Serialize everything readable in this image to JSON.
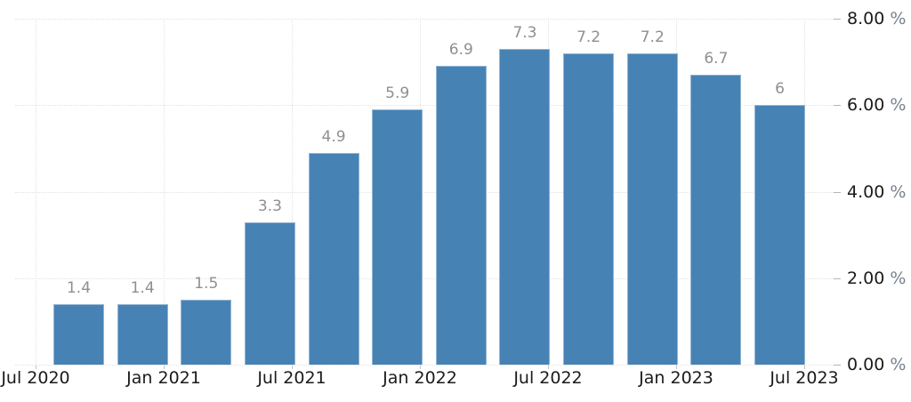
{
  "page": {
    "background_color": "#ffffff"
  },
  "chart_data": {
    "type": "bar",
    "title": "",
    "values": [
      1.4,
      1.4,
      1.5,
      3.3,
      4.9,
      5.9,
      6.9,
      7.3,
      7.2,
      7.2,
      6.7,
      6
    ],
    "bar_value_labels": [
      "1.4",
      "1.4",
      "1.5",
      "3.3",
      "4.9",
      "5.9",
      "6.9",
      "7.3",
      "7.2",
      "7.2",
      "6.7",
      "6"
    ],
    "x_tick_labels": [
      "Jul 2020",
      "Jan 2021",
      "Jul 2021",
      "Jan 2022",
      "Jul 2022",
      "Jan 2023",
      "Jul 2023"
    ],
    "bars_per_x_tick_interval": 2,
    "y_ticks": [
      {
        "value": 0,
        "label": "0.00",
        "unit": "%"
      },
      {
        "value": 2,
        "label": "2.00",
        "unit": "%"
      },
      {
        "value": 4,
        "label": "4.00",
        "unit": "%"
      },
      {
        "value": 6,
        "label": "6.00",
        "unit": "%"
      },
      {
        "value": 8,
        "label": "8.00",
        "unit": "%"
      }
    ],
    "ylim": [
      0,
      8
    ],
    "grid": true,
    "legend": null,
    "y_axis_side": "right",
    "colors": {
      "bar_fill": "#4782b4",
      "bar_border": "#93b5d3",
      "value_label": "#8f8f8f",
      "axis_label": "#1b1b1b",
      "unit_label": "#76828e",
      "gridline": "#e2e2e2"
    }
  }
}
